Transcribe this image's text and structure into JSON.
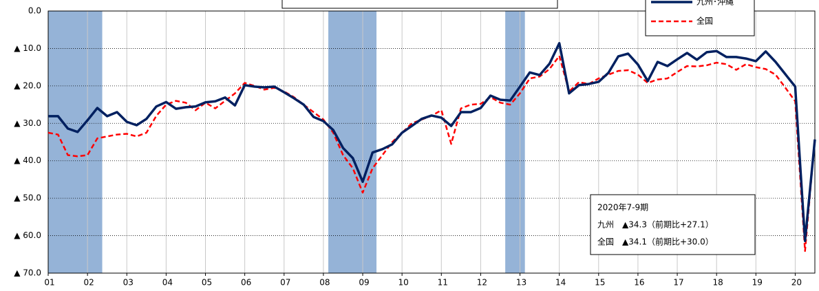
{
  "chart_data": {
    "type": "line",
    "categories": [
      "01",
      null,
      null,
      null,
      "02",
      null,
      null,
      null,
      "03",
      null,
      null,
      null,
      "04",
      null,
      null,
      null,
      "05",
      null,
      null,
      null,
      "06",
      null,
      null,
      null,
      "07",
      null,
      null,
      null,
      "08",
      null,
      null,
      null,
      "09",
      null,
      null,
      null,
      "10",
      null,
      null,
      null,
      "11",
      null,
      null,
      null,
      "12",
      null,
      null,
      null,
      "13",
      null,
      null,
      null,
      "14",
      null,
      null,
      null,
      "15",
      null,
      null,
      null,
      "16",
      null,
      null,
      null,
      "17",
      null,
      null,
      null,
      "18",
      null,
      null,
      null,
      "19",
      null,
      null,
      null,
      "20",
      null,
      null
    ],
    "series": [
      {
        "name": "九州･沖縄",
        "color": "#002060",
        "dash": false,
        "values": [
          -28.1,
          -28.1,
          -31.4,
          -32.3,
          -29.2,
          -25.9,
          -28.1,
          -27,
          -29.6,
          -30.5,
          -28.8,
          -25.5,
          -24.3,
          -26.1,
          -25.7,
          -25.5,
          -24.4,
          -24.1,
          -23.1,
          -25.2,
          -19.8,
          -20.2,
          -20.4,
          -20.2,
          -21.7,
          -23.3,
          -25,
          -28.3,
          -29.4,
          -31.8,
          -36.6,
          -39.3,
          -45.6,
          -37.8,
          -36.9,
          -35.6,
          -32.5,
          -30.7,
          -28.8,
          -27.9,
          -28.5,
          -30.7,
          -27,
          -27,
          -25.9,
          -22.6,
          -23.7,
          -23.9,
          -20.2,
          -16.4,
          -17.1,
          -14.1,
          -8.6,
          -22,
          -19.8,
          -19.5,
          -18.9,
          -16.5,
          -12.1,
          -11.4,
          -14.3,
          -18.7,
          -13.6,
          -14.7,
          -12.9,
          -11.2,
          -13,
          -11,
          -10.7,
          -12.3,
          -12.3,
          -12.7,
          -13.4,
          -10.8,
          -13.6,
          -16.9,
          -20.2,
          -61.4,
          -34.3
        ]
      },
      {
        "name": "全国",
        "color": "#ff0000",
        "dash": true,
        "values": [
          -32.5,
          -33,
          -38.5,
          -38.8,
          -38.5,
          -34,
          -33.5,
          -33,
          -32.8,
          -33.5,
          -32.5,
          -28,
          -25,
          -24,
          -24.5,
          -26.5,
          -24.5,
          -26,
          -24,
          -22,
          -19.2,
          -20,
          -21,
          -20.5,
          -21.5,
          -23,
          -25,
          -27,
          -29,
          -32.5,
          -38.5,
          -42,
          -48.5,
          -42,
          -38.5,
          -35,
          -32.5,
          -30,
          -29,
          -28,
          -26.5,
          -35.5,
          -26,
          -25,
          -24.8,
          -23,
          -24.5,
          -25,
          -22,
          -18,
          -17.5,
          -15.5,
          -12,
          -21.5,
          -19,
          -19.5,
          -18,
          -17,
          -16,
          -15.8,
          -17,
          -19.2,
          -18.3,
          -18,
          -16.3,
          -14.7,
          -14.8,
          -14.5,
          -13.8,
          -14.2,
          -15.7,
          -14.2,
          -15,
          -15.5,
          -17,
          -20.5,
          -24.1,
          -64.1,
          -34.1
        ]
      }
    ],
    "ylim": [
      -70,
      0
    ],
    "yticks": [
      {
        "value": 0,
        "label": "0.0"
      },
      {
        "value": -10,
        "label": "▲ 10.0"
      },
      {
        "value": -20,
        "label": "▲ 20.0"
      },
      {
        "value": -30,
        "label": "▲ 30.0"
      },
      {
        "value": -40,
        "label": "▲ 40.0"
      },
      {
        "value": -50,
        "label": "▲ 50.0"
      },
      {
        "value": -60,
        "label": "▲ 60.0"
      },
      {
        "value": -70,
        "label": "▲ 70.0"
      }
    ],
    "grid": true,
    "shaded": [
      {
        "from": 0,
        "to": 5.5,
        "color": "#95b3d7"
      },
      {
        "from": 28.5,
        "to": 33.4,
        "color": "#95b3d7"
      },
      {
        "from": 46.5,
        "to": 48.5,
        "color": "#95b3d7"
      }
    ],
    "annotation": [
      "2020年7-9期",
      "九州　▲34.3（前期比+27.1）",
      "全国　▲34.1（前期比+30.0）"
    ],
    "legend": "top-right"
  }
}
